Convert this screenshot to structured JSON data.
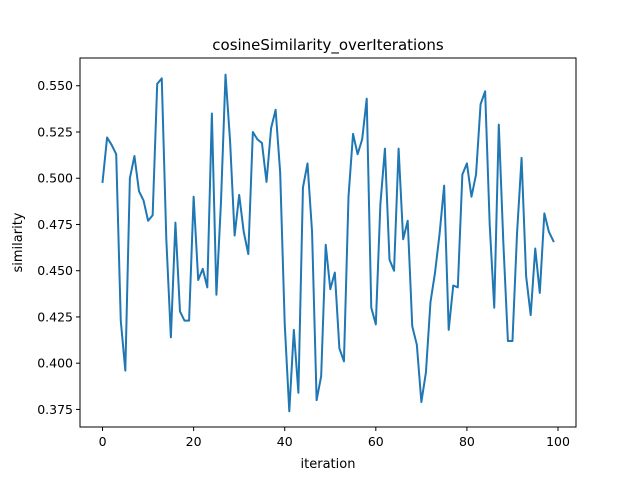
{
  "chart_data": {
    "type": "line",
    "title": "cosineSimilarity_overIterations",
    "xlabel": "iteration",
    "ylabel": "similarity",
    "xlim": [
      -4.95,
      103.95
    ],
    "ylim": [
      0.3655,
      0.565
    ],
    "xticks": [
      0,
      20,
      40,
      60,
      80,
      100
    ],
    "yticks": [
      0.375,
      0.4,
      0.425,
      0.45,
      0.475,
      0.5,
      0.525,
      0.55
    ],
    "ytick_labels": [
      "0.375",
      "0.400",
      "0.425",
      "0.450",
      "0.475",
      "0.500",
      "0.525",
      "0.550"
    ],
    "grid": false,
    "legend": "none",
    "series": [
      {
        "color": "#1f77b4",
        "x": [
          0,
          1,
          2,
          3,
          4,
          5,
          6,
          7,
          8,
          9,
          10,
          11,
          12,
          13,
          14,
          15,
          16,
          17,
          18,
          19,
          20,
          21,
          22,
          23,
          24,
          25,
          26,
          27,
          28,
          29,
          30,
          31,
          32,
          33,
          34,
          35,
          36,
          37,
          38,
          39,
          40,
          41,
          42,
          43,
          44,
          45,
          46,
          47,
          48,
          49,
          50,
          51,
          52,
          53,
          54,
          55,
          56,
          57,
          58,
          59,
          60,
          61,
          62,
          63,
          64,
          65,
          66,
          67,
          68,
          69,
          70,
          71,
          72,
          73,
          74,
          75,
          76,
          77,
          78,
          79,
          80,
          81,
          82,
          83,
          84,
          85,
          86,
          87,
          88,
          89,
          90,
          91,
          92,
          93,
          94,
          95,
          96,
          97,
          98,
          99
        ],
        "values": [
          0.498,
          0.522,
          0.518,
          0.513,
          0.423,
          0.396,
          0.5,
          0.512,
          0.493,
          0.488,
          0.477,
          0.48,
          0.551,
          0.554,
          0.467,
          0.414,
          0.476,
          0.428,
          0.423,
          0.423,
          0.49,
          0.445,
          0.451,
          0.441,
          0.535,
          0.437,
          0.487,
          0.556,
          0.52,
          0.469,
          0.491,
          0.471,
          0.459,
          0.525,
          0.521,
          0.519,
          0.498,
          0.527,
          0.537,
          0.503,
          0.421,
          0.374,
          0.418,
          0.384,
          0.495,
          0.508,
          0.471,
          0.38,
          0.393,
          0.464,
          0.44,
          0.449,
          0.408,
          0.401,
          0.49,
          0.524,
          0.513,
          0.521,
          0.543,
          0.43,
          0.421,
          0.486,
          0.516,
          0.456,
          0.45,
          0.516,
          0.467,
          0.477,
          0.42,
          0.41,
          0.379,
          0.395,
          0.433,
          0.449,
          0.47,
          0.496,
          0.418,
          0.442,
          0.441,
          0.502,
          0.508,
          0.49,
          0.502,
          0.54,
          0.547,
          0.475,
          0.43,
          0.529,
          0.465,
          0.412,
          0.412,
          0.47,
          0.511,
          0.447,
          0.426,
          0.462,
          0.438,
          0.481,
          0.471,
          0.466
        ]
      }
    ]
  }
}
